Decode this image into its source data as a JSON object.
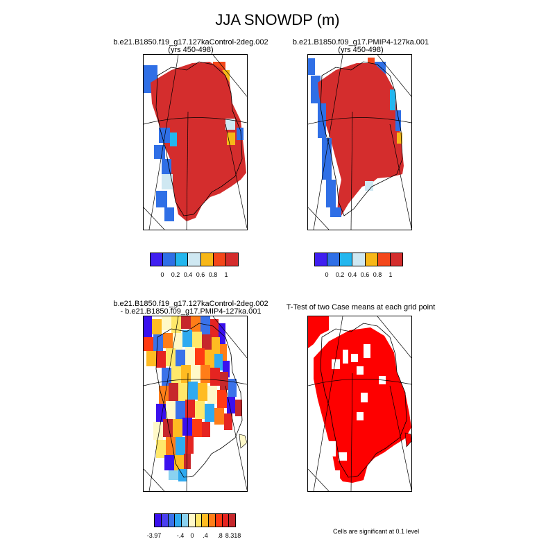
{
  "title": "JJA SNOWDP (m)",
  "panels": [
    {
      "id": "p1",
      "line1": "b.e21.B1850.f19_g17.127kaControl-2deg.002",
      "line2": "(yrs 450-498)"
    },
    {
      "id": "p2",
      "line1": "b.e21.B1850.f09_g17.PMIP4-127ka.001",
      "line2": "(yrs 450-498)"
    },
    {
      "id": "p3",
      "line1": "b.e21.B1850.f19_g17.127kaControl-2deg.002",
      "line2": "- b.e21.B1850.f09_g17.PMIP4-127ka.001"
    },
    {
      "id": "p4",
      "line1": "T-Test of two Case means at each grid point",
      "line2": ""
    }
  ],
  "colorbar_abs": {
    "colors": [
      "#3f1ff0",
      "#2f6fe6",
      "#23b6ee",
      "#cfe8f2",
      "#f7b718",
      "#f4471a",
      "#d42d2d"
    ],
    "labels": [
      "0",
      "0.2",
      "0.4",
      "0.6",
      "0.8",
      "1"
    ]
  },
  "colorbar_diff": {
    "colors": [
      "#3a10ee",
      "#4a3ff0",
      "#3a72ea",
      "#2faaf0",
      "#8ad2f0",
      "#fff9c8",
      "#ffe86a",
      "#ffbb22",
      "#ff7d18",
      "#ff3a12",
      "#e52421",
      "#c6282c"
    ],
    "labels": [
      "-3.97",
      "-.4",
      "0",
      ".4",
      ".8",
      "8.318"
    ]
  },
  "significance_note": "Cells are significant at 0.1 level"
}
